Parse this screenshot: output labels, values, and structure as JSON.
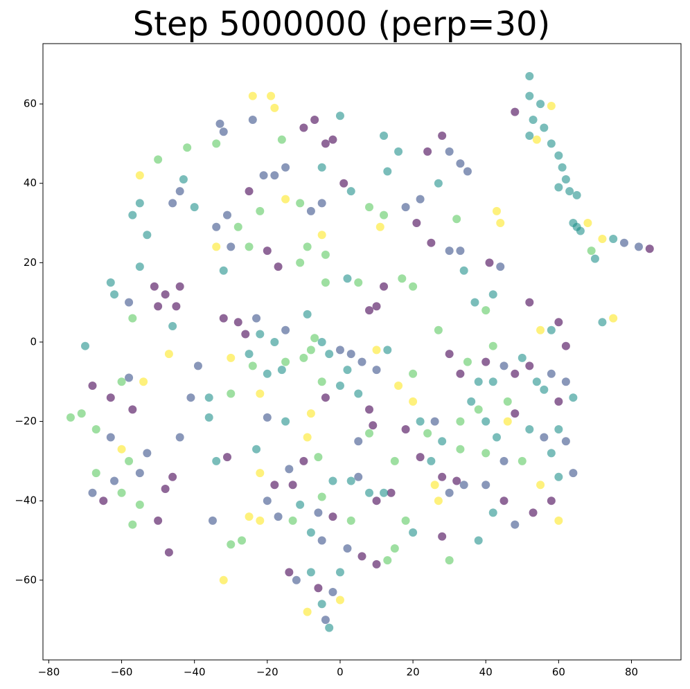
{
  "chart_data": {
    "type": "scatter",
    "title": "Step 5000000 (perp=30)",
    "xlim": [
      -81.6,
      93.6
    ],
    "ylim": [
      -80.1,
      75.2
    ],
    "xticks": [
      {
        "value": -80,
        "label": "−80"
      },
      {
        "value": -60,
        "label": "−60"
      },
      {
        "value": -40,
        "label": "−40"
      },
      {
        "value": -20,
        "label": "−20"
      },
      0,
      20,
      40,
      60,
      80
    ],
    "yticks": [
      {
        "value": -60,
        "label": "−60"
      },
      {
        "value": -40,
        "label": "−40"
      },
      {
        "value": -20,
        "label": "−20"
      },
      0,
      20,
      40,
      60
    ],
    "series": [
      {
        "color": "#440154",
        "x": [
          48,
          -10,
          -7,
          -4,
          -2,
          -25,
          1,
          24,
          28,
          21,
          25,
          41,
          -20,
          -17,
          12,
          10,
          8,
          -51,
          -48,
          -44,
          -45,
          -50,
          -68,
          -63,
          -57,
          -65,
          -50,
          -47,
          -46,
          -48,
          -31,
          -32,
          -28,
          -26,
          8,
          9,
          -4,
          -18,
          -10,
          -13,
          10,
          14,
          -2,
          6,
          10,
          -14,
          -6,
          18,
          22,
          28,
          32,
          40,
          48,
          52,
          60,
          58,
          53,
          45,
          48,
          60,
          62,
          30,
          33,
          28,
          52,
          85
        ],
        "values": [
          58,
          54,
          56,
          50,
          51,
          38,
          40,
          48,
          52,
          30,
          25,
          20,
          23,
          19,
          14,
          9,
          8,
          14,
          12,
          14,
          9,
          9,
          -11,
          -14,
          -17,
          -40,
          -45,
          -53,
          -34,
          -37,
          -29,
          6,
          5,
          2,
          -17,
          -21,
          -14,
          -36,
          -30,
          -36,
          -40,
          -38,
          -44,
          -54,
          -56,
          -58,
          -62,
          -22,
          -29,
          -34,
          -35,
          -5,
          -8,
          -6,
          -15,
          -40,
          -43,
          -40,
          -18,
          5,
          -1,
          -3,
          -8,
          -49,
          10,
          23.5
        ]
      },
      {
        "color": "#3b528b",
        "x": [
          -33,
          -32,
          -24,
          -15,
          -18,
          -21,
          -8,
          -5,
          30,
          35,
          33,
          22,
          18,
          30,
          33,
          -44,
          -46,
          -34,
          -31,
          -30,
          -58,
          -58,
          -63,
          -55,
          -53,
          -62,
          -68,
          -41,
          -44,
          -39,
          -35,
          -23,
          -15,
          0,
          3,
          6,
          10,
          -20,
          -14,
          5,
          5,
          -6,
          -17,
          -20,
          -5,
          2,
          -12,
          -4,
          -2,
          26,
          30,
          34,
          45,
          58,
          62,
          56,
          62,
          48,
          40,
          45,
          44,
          64,
          78,
          82
        ],
        "values": [
          55,
          53,
          56,
          44,
          42,
          42,
          33,
          35,
          48,
          43,
          45,
          36,
          34,
          23,
          23,
          38,
          35,
          29,
          32,
          24,
          10,
          -9,
          -24,
          -33,
          -28,
          -35,
          -38,
          -14,
          -24,
          -6,
          -45,
          6,
          3,
          -2,
          -3,
          -5,
          -7,
          -19,
          -32,
          -25,
          -34,
          -43,
          -44,
          -40,
          -50,
          -52,
          -60,
          -70,
          -63,
          -20,
          -38,
          -36,
          -6,
          -8,
          -10,
          -24,
          -25,
          -46,
          -36,
          -30,
          19,
          -33,
          25,
          24
        ]
      },
      {
        "color": "#21918c",
        "x": [
          52,
          52,
          55,
          53,
          56,
          52,
          58,
          60,
          61,
          62,
          60,
          63,
          65,
          64,
          65,
          66,
          70,
          75,
          72,
          0,
          -5,
          3,
          13,
          16,
          12,
          27,
          34,
          37,
          42,
          -43,
          -40,
          -55,
          -57,
          -53,
          -55,
          -32,
          2,
          -63,
          -62,
          -46,
          -70,
          -36,
          -36,
          -34,
          -22,
          -25,
          -20,
          -16,
          -5,
          -18,
          -9,
          -3,
          2,
          0,
          5,
          -15,
          -23,
          -11,
          -2,
          3,
          8,
          12,
          -8,
          -8,
          -5,
          -3,
          0,
          22,
          28,
          25,
          36,
          38,
          42,
          50,
          54,
          56,
          64,
          58,
          60,
          42,
          43,
          52,
          40,
          58,
          38,
          20,
          13,
          60
        ],
        "values": [
          67,
          62,
          60,
          56,
          54,
          52,
          50,
          47,
          44,
          41,
          39,
          38,
          37,
          30,
          29,
          28,
          21,
          26,
          5,
          57,
          44,
          38,
          43,
          48,
          52,
          40,
          18,
          10,
          12,
          41,
          34,
          35,
          32,
          27,
          19,
          18,
          16,
          15,
          12,
          4,
          -1,
          -19,
          -14,
          -30,
          2,
          -3,
          -8,
          -7,
          0,
          0,
          7,
          -3,
          -7,
          -11,
          -13,
          -20,
          -27,
          -41,
          -35,
          -35,
          -38,
          -38,
          -48,
          -58,
          -66,
          -72,
          -58,
          -20,
          -25,
          -30,
          -15,
          -10,
          -10,
          -4,
          -10,
          -12,
          -14,
          -28,
          -34,
          -43,
          -24,
          -22,
          -20,
          3,
          -50,
          -48,
          -2,
          -22
        ]
      },
      {
        "color": "#5ec962",
        "x": [
          69,
          -16,
          -22,
          -11,
          8,
          12,
          32,
          40,
          -42,
          -34,
          -50,
          -28,
          -25,
          -11,
          -9,
          -4,
          -4,
          5,
          20,
          17,
          -57,
          -60,
          -74,
          -71,
          -67,
          -58,
          -67,
          -60,
          -55,
          -57,
          -30,
          -30,
          -27,
          -24,
          -15,
          -10,
          -8,
          -7,
          -5,
          -6,
          -5,
          8,
          3,
          -13,
          15,
          13,
          24,
          33,
          33,
          35,
          38,
          50,
          27,
          42,
          30,
          18,
          15,
          40,
          46,
          20
        ],
        "values": [
          23,
          51,
          33,
          35,
          34,
          32,
          31,
          8,
          49,
          50,
          46,
          29,
          24,
          20,
          24,
          22,
          15,
          15,
          14,
          16,
          6,
          -10,
          -19,
          -18,
          -22,
          -30,
          -33,
          -38,
          -41,
          -46,
          -13,
          -51,
          -50,
          -6,
          -5,
          -4,
          -2,
          1,
          -10,
          -29,
          -39,
          -23,
          -45,
          -45,
          -52,
          -55,
          -23,
          -27,
          -20,
          -5,
          -17,
          -30,
          3,
          -1,
          -55,
          -45,
          -30,
          -28,
          -15,
          -8
        ]
      },
      {
        "color": "#fde725",
        "x": [
          58,
          54,
          68,
          72,
          75,
          -24,
          -19,
          -18,
          -15,
          11,
          43,
          44,
          -55,
          -34,
          -5,
          -47,
          -54,
          -60,
          -32,
          -30,
          -22,
          10,
          -8,
          -22,
          -9,
          -25,
          -22,
          0,
          -9,
          20,
          27,
          26,
          55,
          60,
          46,
          55,
          16
        ],
        "values": [
          59.5,
          51,
          30,
          26,
          6,
          62,
          62,
          59,
          36,
          29,
          33,
          30,
          42,
          24,
          27,
          -3,
          -10,
          -27,
          -60,
          -4,
          -13,
          -2,
          -18,
          -33,
          -24,
          -44,
          -45,
          -65,
          -68,
          -15,
          -40,
          -36,
          -36,
          -45,
          -20,
          3,
          -11
        ]
      }
    ]
  }
}
